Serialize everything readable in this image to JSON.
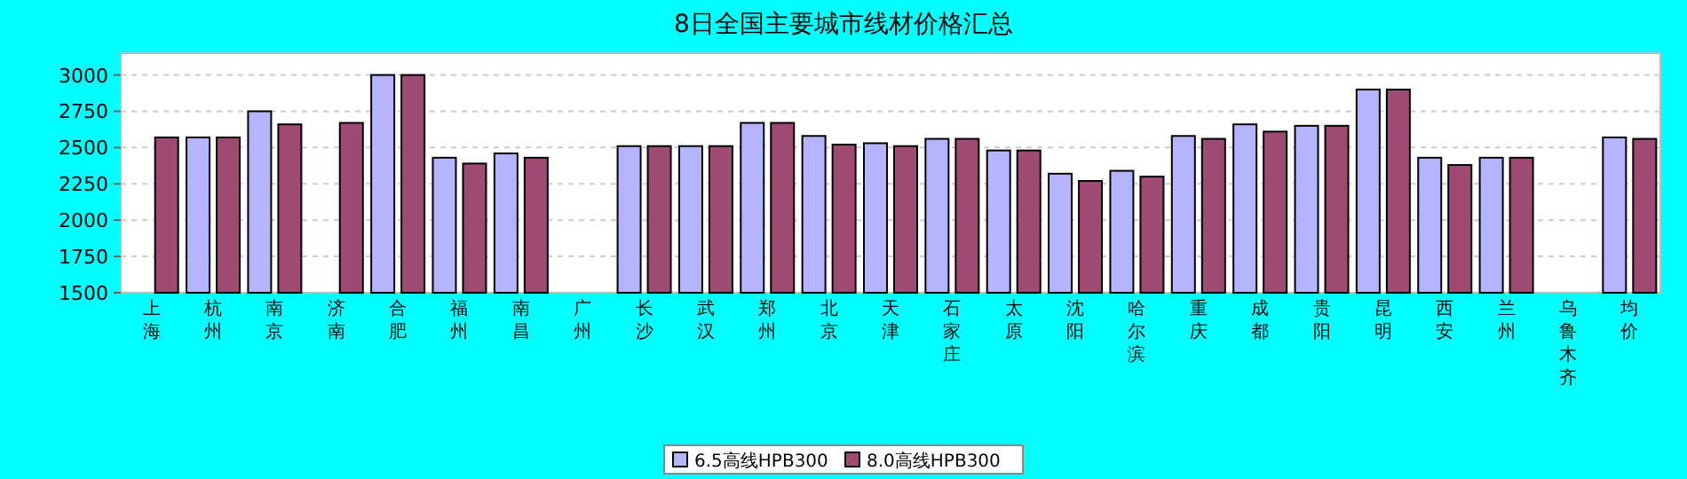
{
  "chart_data": {
    "type": "bar",
    "title": "8日全国主要城市线材价格汇总",
    "categories": [
      "上海",
      "杭州",
      "南京",
      "济南",
      "合肥",
      "福州",
      "南昌",
      "广州",
      "长沙",
      "武汉",
      "郑州",
      "北京",
      "天津",
      "石家庄",
      "太原",
      "沈阳",
      "哈尔滨",
      "重庆",
      "成都",
      "贵阳",
      "昆明",
      "西安",
      "兰州",
      "乌鲁木齐",
      "均价"
    ],
    "series": [
      {
        "name": "6.5高线HPB300",
        "color": "#b4b4ff",
        "values": [
          null,
          2570,
          2750,
          null,
          3000,
          2430,
          2460,
          null,
          2510,
          2510,
          2670,
          2580,
          2530,
          2560,
          2480,
          2320,
          2340,
          2580,
          2660,
          2650,
          2900,
          2430,
          2430,
          null,
          2570
        ]
      },
      {
        "name": "8.0高线HPB300",
        "color": "#9e4a72",
        "values": [
          2570,
          2570,
          2660,
          2670,
          3000,
          2390,
          2430,
          null,
          2510,
          2510,
          2670,
          2520,
          2510,
          2560,
          2480,
          2270,
          2300,
          2560,
          2610,
          2650,
          2900,
          2380,
          2430,
          null,
          2560
        ]
      }
    ],
    "ylim": [
      1500,
      3150
    ],
    "yticks": [
      1500,
      1750,
      2000,
      2250,
      2500,
      2750,
      3000
    ],
    "grid": "y",
    "legend": "bottom"
  }
}
